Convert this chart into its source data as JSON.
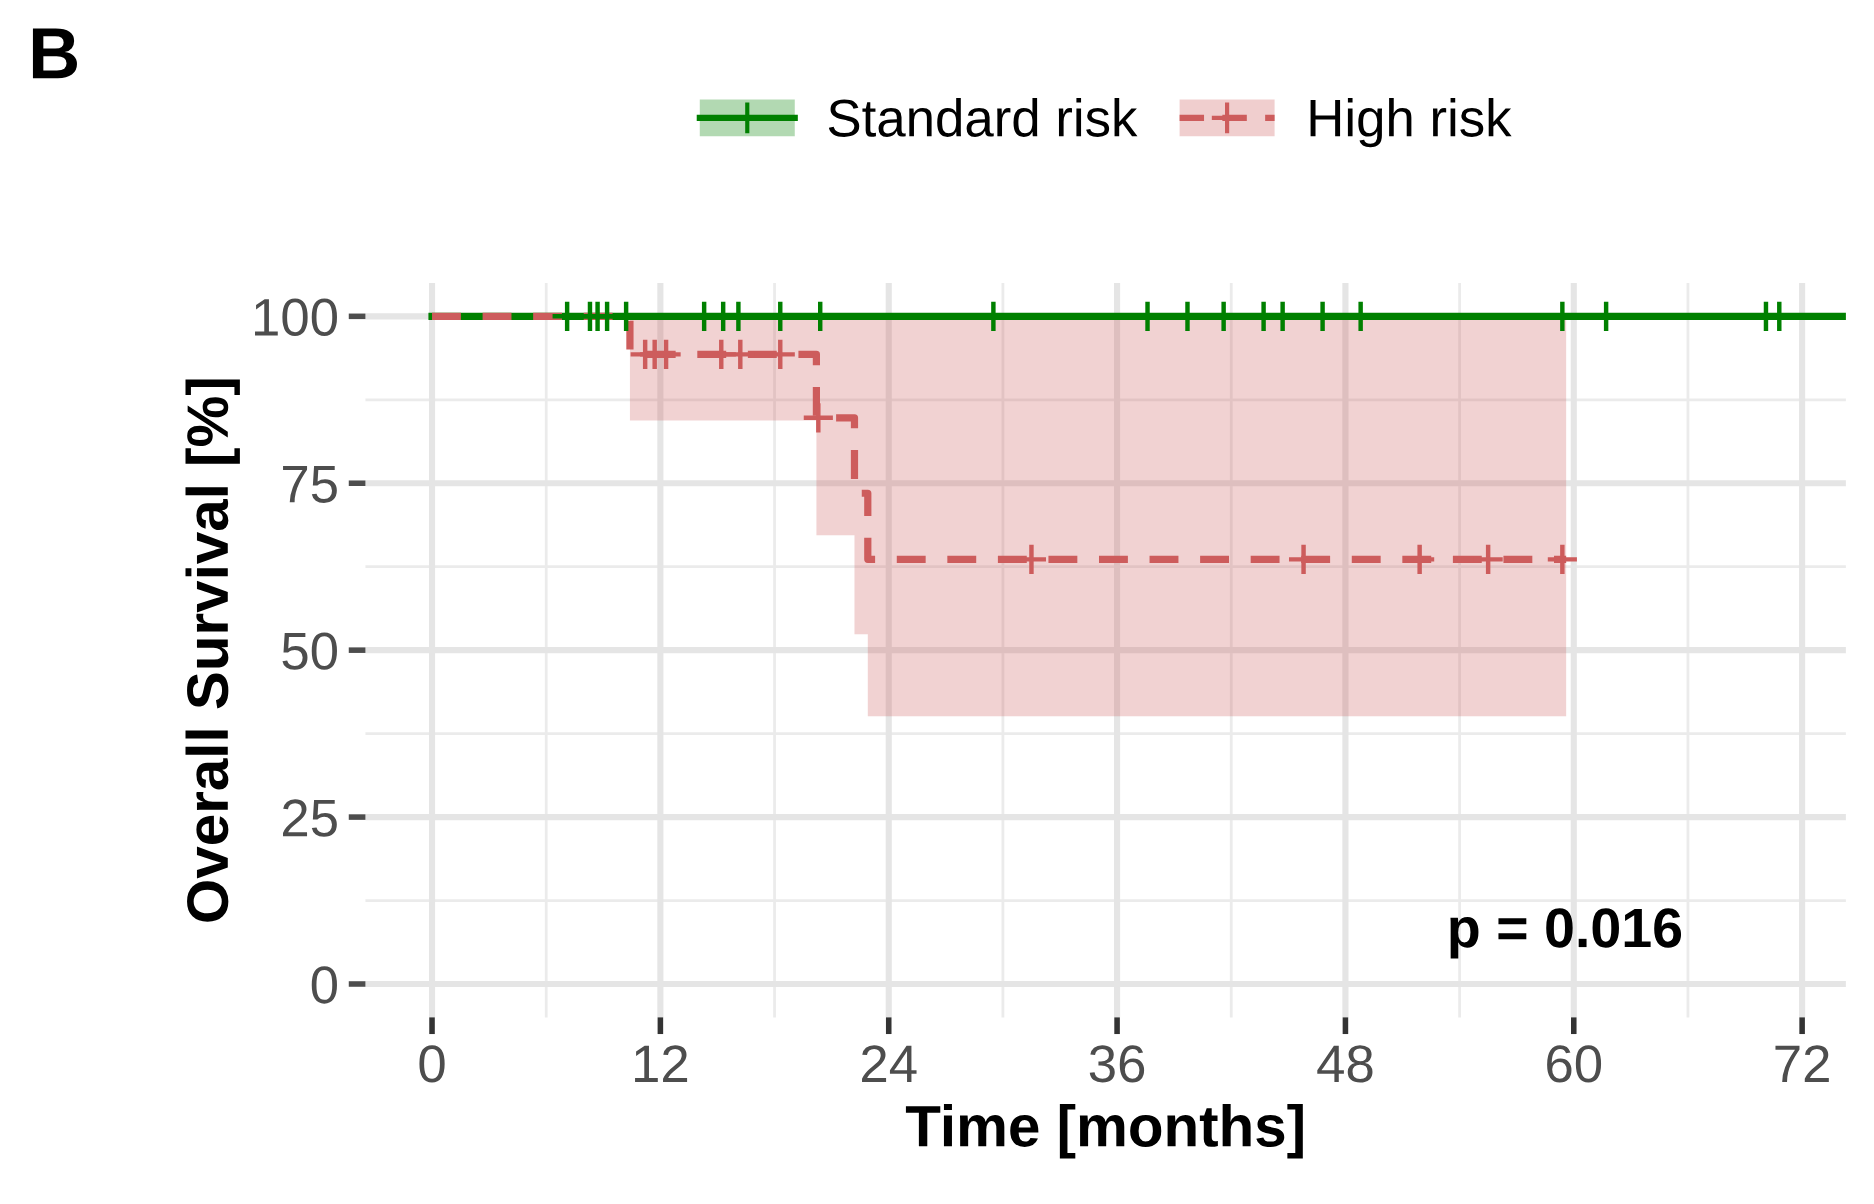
{
  "chart_data": {
    "type": "step",
    "title": "B",
    "xlabel": "Time [months]",
    "ylabel": "Overall Survival [%]",
    "annotations": [
      "p = 0.016"
    ],
    "xlim": [
      -3.5,
      74.3
    ],
    "ylim": [
      -5,
      105
    ],
    "xticks": [
      0,
      12,
      24,
      36,
      48,
      60,
      72
    ],
    "yticks": [
      0,
      25,
      50,
      75,
      100
    ],
    "grid": true,
    "legend": "top",
    "line_style": "solid",
    "marker": "none",
    "series": [
      {
        "name": "Standard risk",
        "color": "#008000",
        "x": [
          0,
          74.3
        ],
        "values": [
          100,
          100
        ]
      },
      {
        "name": "High risk",
        "color": "#cd5c5c",
        "line_style": "dashed",
        "x": [
          0,
          10.4,
          20.2,
          22.2,
          22.9,
          59.6
        ],
        "values": [
          100,
          94.3,
          84.8,
          73.5,
          63.6,
          63.6
        ],
        "lower": [
          100,
          84.4,
          67.2,
          52.4,
          40.1,
          40.1
        ],
        "upper": [
          100,
          100,
          100,
          100,
          100,
          100
        ]
      },
      {
        "color": "#008000",
        "type": "scatter",
        "marker": "cross",
        "x": [
          7.1,
          8.3,
          8.7,
          9.2,
          10.2,
          14.3,
          15.3,
          16.1,
          18.3,
          20.4,
          29.5,
          37.6,
          39.7,
          41.6,
          43.7,
          44.7,
          46.8,
          48.8,
          59.4,
          61.7,
          70.1,
          70.8
        ],
        "values": [
          100,
          100,
          100,
          100,
          100,
          100,
          100,
          100,
          100,
          100,
          100,
          100,
          100,
          100,
          100,
          100,
          100,
          100,
          100,
          100,
          100,
          100
        ]
      },
      {
        "color": "#cd5c5c",
        "type": "scatter",
        "marker": "cross",
        "x": [
          11.2,
          11.7,
          12.3,
          15.2,
          16.2,
          18.3,
          20.3,
          31.5,
          45.8,
          51.9,
          55.5,
          59.4
        ],
        "values": [
          94.3,
          94.3,
          94.3,
          94.3,
          94.3,
          94.3,
          84.8,
          63.6,
          63.6,
          63.6,
          63.6,
          63.6
        ]
      }
    ]
  }
}
